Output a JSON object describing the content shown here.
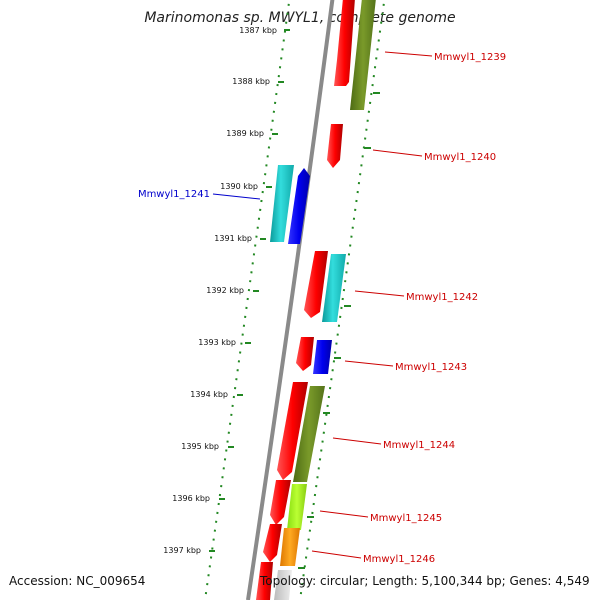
{
  "title": "Marinomonas sp. MWYL1, complete genome",
  "footer": {
    "accession": "Accession: NC_009654",
    "stats": "Topology: circular; Length: 5,100,344 bp; Genes: 4,549"
  },
  "ticks": [
    "1387 kbp",
    "1388 kbp",
    "1389 kbp",
    "1390 kbp",
    "1391 kbp",
    "1392 kbp",
    "1393 kbp",
    "1394 kbp",
    "1395 kbp",
    "1396 kbp",
    "1397 kbp"
  ],
  "gene_labels": [
    {
      "text": "Mmwyl1_1239",
      "color": "#cc0000"
    },
    {
      "text": "Mmwyl1_1240",
      "color": "#cc0000"
    },
    {
      "text": "Mmwyl1_1241",
      "color": "#0000cc"
    },
    {
      "text": "Mmwyl1_1242",
      "color": "#cc0000"
    },
    {
      "text": "Mmwyl1_1243",
      "color": "#cc0000"
    },
    {
      "text": "Mmwyl1_1244",
      "color": "#cc0000"
    },
    {
      "text": "Mmwyl1_1245",
      "color": "#cc0000"
    },
    {
      "text": "Mmwyl1_1246",
      "color": "#cc0000"
    }
  ],
  "colors": {
    "cds": "#ff0000",
    "cyan": "#22cccc",
    "blue": "#0000ee",
    "olive": "#6b8e23",
    "lime": "#aaff22",
    "orange": "#ff9900",
    "ruler": "#228822",
    "backbone": "#888888"
  }
}
